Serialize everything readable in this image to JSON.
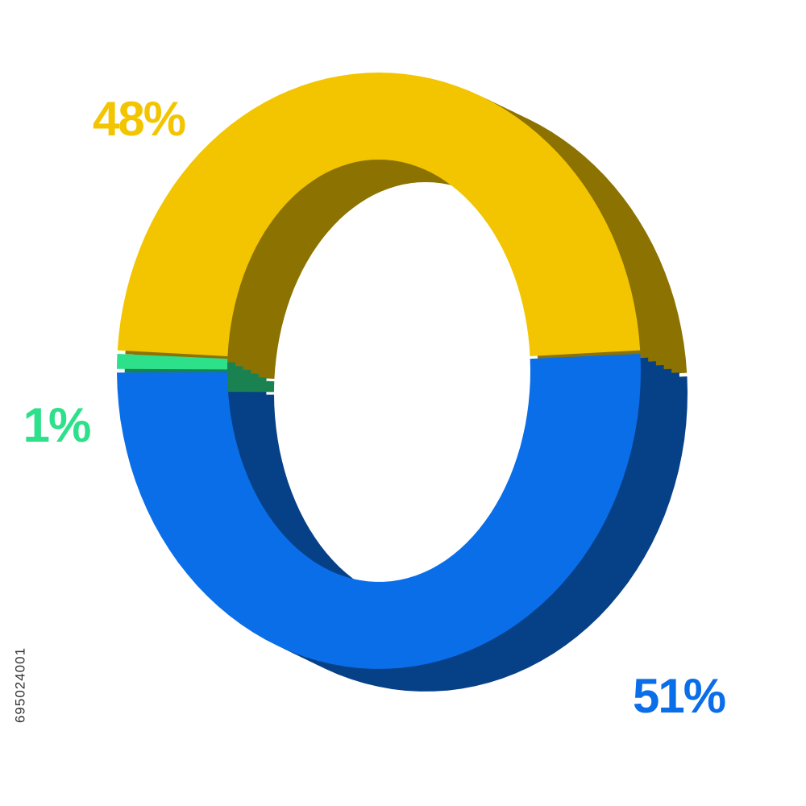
{
  "chart_data": {
    "type": "donut",
    "values": [
      48,
      51,
      1
    ],
    "value_labels": [
      "48%",
      "51%",
      "1%"
    ],
    "colors": [
      "#f2c500",
      "#0a6ee8",
      "#2de08a"
    ]
  },
  "side_text": "695024001"
}
